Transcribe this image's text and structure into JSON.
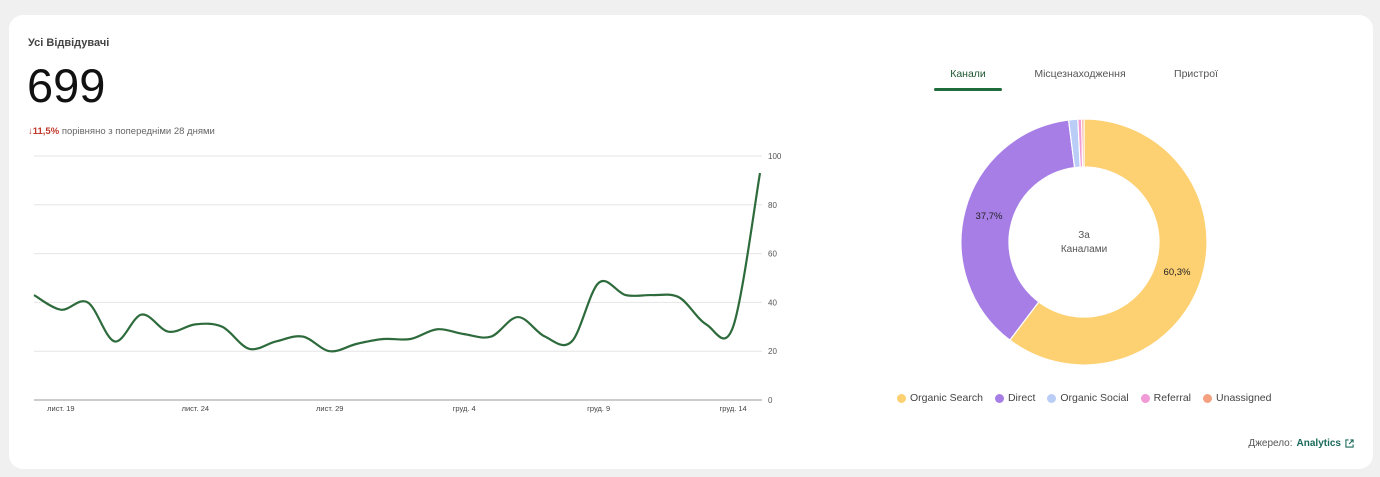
{
  "card": {
    "title": "Усі Відвідувачі",
    "total": "699",
    "delta_arrow": "↓",
    "delta_value": "11,5%",
    "delta_text": "порівняно з попередніми 28 днями"
  },
  "tabs": [
    {
      "label": "Канали",
      "active": true
    },
    {
      "label": "Місцезнаходження",
      "active": false
    },
    {
      "label": "Пристрої",
      "active": false
    }
  ],
  "donut": {
    "center_line1": "За",
    "center_line2": "Каналами",
    "label_direct": "37,7%",
    "label_organic": "60,3%"
  },
  "legend": [
    {
      "label": "Organic Search",
      "color": "#fdd072"
    },
    {
      "label": "Direct",
      "color": "#a67ee6"
    },
    {
      "label": "Organic Social",
      "color": "#b9cdf7"
    },
    {
      "label": "Referral",
      "color": "#f09ad6"
    },
    {
      "label": "Unassigned",
      "color": "#f5a07f"
    }
  ],
  "source": {
    "prefix": "Джерело:",
    "link": "Analytics"
  },
  "chart_data": [
    {
      "type": "line",
      "x": [
        "лист. 18",
        "лист. 19",
        "лист. 20",
        "лист. 21",
        "лист. 22",
        "лист. 23",
        "лист. 24",
        "лист. 25",
        "лист. 26",
        "лист. 27",
        "лист. 28",
        "лист. 29",
        "лист. 30",
        "груд. 1",
        "груд. 2",
        "груд. 3",
        "груд. 4",
        "груд. 5",
        "груд. 6",
        "груд. 7",
        "груд. 8",
        "груд. 9",
        "груд. 10",
        "груд. 11",
        "груд. 12",
        "груд. 13",
        "груд. 14",
        "груд. 15"
      ],
      "x_tick_labels": [
        "лист. 19",
        "лист. 24",
        "лист. 29",
        "груд. 4",
        "груд. 9",
        "груд. 14"
      ],
      "y_ticks": [
        0,
        20,
        40,
        60,
        80,
        100
      ],
      "ylim": [
        0,
        100
      ],
      "series": [
        {
          "color": "#2e6b3c",
          "values": [
            43,
            37,
            40,
            24,
            35,
            28,
            31,
            30,
            21,
            24,
            26,
            20,
            23,
            25,
            25,
            29,
            27,
            26,
            34,
            26,
            24,
            48,
            43,
            43,
            42,
            31,
            30,
            93
          ]
        }
      ]
    },
    {
      "type": "pie",
      "categories": [
        "Organic Search",
        "Direct",
        "Organic Social",
        "Referral",
        "Unassigned"
      ],
      "values": [
        60.3,
        37.7,
        1.2,
        0.5,
        0.3
      ]
    }
  ]
}
